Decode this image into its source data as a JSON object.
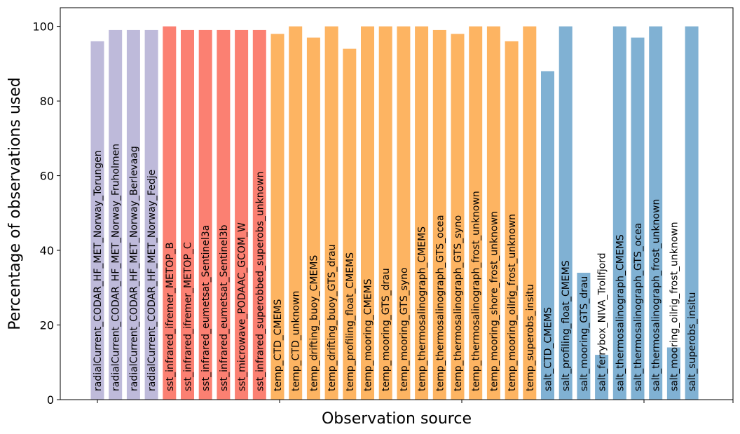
{
  "chart_data": {
    "type": "bar",
    "xlabel": "Observation source",
    "ylabel": "Percentage of observations used",
    "ylim": [
      0,
      105
    ],
    "yticks": [
      0,
      20,
      40,
      60,
      80,
      100
    ],
    "grid": false,
    "colors": {
      "radialCurrent": "#bebada",
      "sst": "#fb8072",
      "temp": "#fdb462",
      "salt": "#80b1d3"
    },
    "categories": [
      "radialCurrent_CODAR_HF_MET_Norway_Torungen",
      "radialCurrent_CODAR_HF_MET_Norway_Fruholmen",
      "radialCurrent_CODAR_HF_MET_Norway_Berlevaag",
      "radialCurrent_CODAR_HF_MET_Norway_Fedje",
      "sst_infrared_ifremer_METOP_B",
      "sst_infrared_ifremer_METOP_C",
      "sst_infrared_eumetsat_Sentinel3a",
      "sst_infrared_eumetsat_Sentinel3b",
      "sst_microwave_PODAAC_GCOM_W",
      "sst_infrared_superobbed_superobs_unknown",
      "temp_CTD_CMEMS",
      "temp_CTD_unknown",
      "temp_drifting_buoy_CMEMS",
      "temp_drifting_buoy_GTS_drau",
      "temp_profiling_float_CMEMS",
      "temp_mooring_CMEMS",
      "temp_mooring_GTS_drau",
      "temp_mooring_GTS_syno",
      "temp_thermosalinograph_CMEMS",
      "temp_thermosalinograph_GTS_ocea",
      "temp_thermosalinograph_GTS_syno",
      "temp_thermosalinograph_frost_unknown",
      "temp_mooring_shore_frost_unknown",
      "temp_mooring_oilrig_frost_unknown",
      "temp_superobs_insitu",
      "salt_CTD_CMEMS",
      "salt_profiling_float_CMEMS",
      "salt_mooring_GTS_drau",
      "salt_ferrybox_NIVA_Trollfjord",
      "salt_thermosalinograph_CMEMS",
      "salt_thermosalinograph_GTS_ocea",
      "salt_thermosalinograph_frost_unknown",
      "salt_mooring_oilrig_frost_unknown",
      "salt_superobs_insitu"
    ],
    "values": [
      96,
      99,
      99,
      99,
      100,
      99,
      99,
      99,
      99,
      99,
      98,
      100,
      97,
      100,
      94,
      100,
      100,
      100,
      100,
      99,
      98,
      100,
      100,
      96,
      100,
      88,
      100,
      34,
      12,
      100,
      97,
      100,
      14,
      100
    ],
    "groups": [
      "radialCurrent",
      "radialCurrent",
      "radialCurrent",
      "radialCurrent",
      "sst",
      "sst",
      "sst",
      "sst",
      "sst",
      "sst",
      "temp",
      "temp",
      "temp",
      "temp",
      "temp",
      "temp",
      "temp",
      "temp",
      "temp",
      "temp",
      "temp",
      "temp",
      "temp",
      "temp",
      "temp",
      "salt",
      "salt",
      "salt",
      "salt",
      "salt",
      "salt",
      "salt",
      "salt",
      "salt"
    ]
  }
}
